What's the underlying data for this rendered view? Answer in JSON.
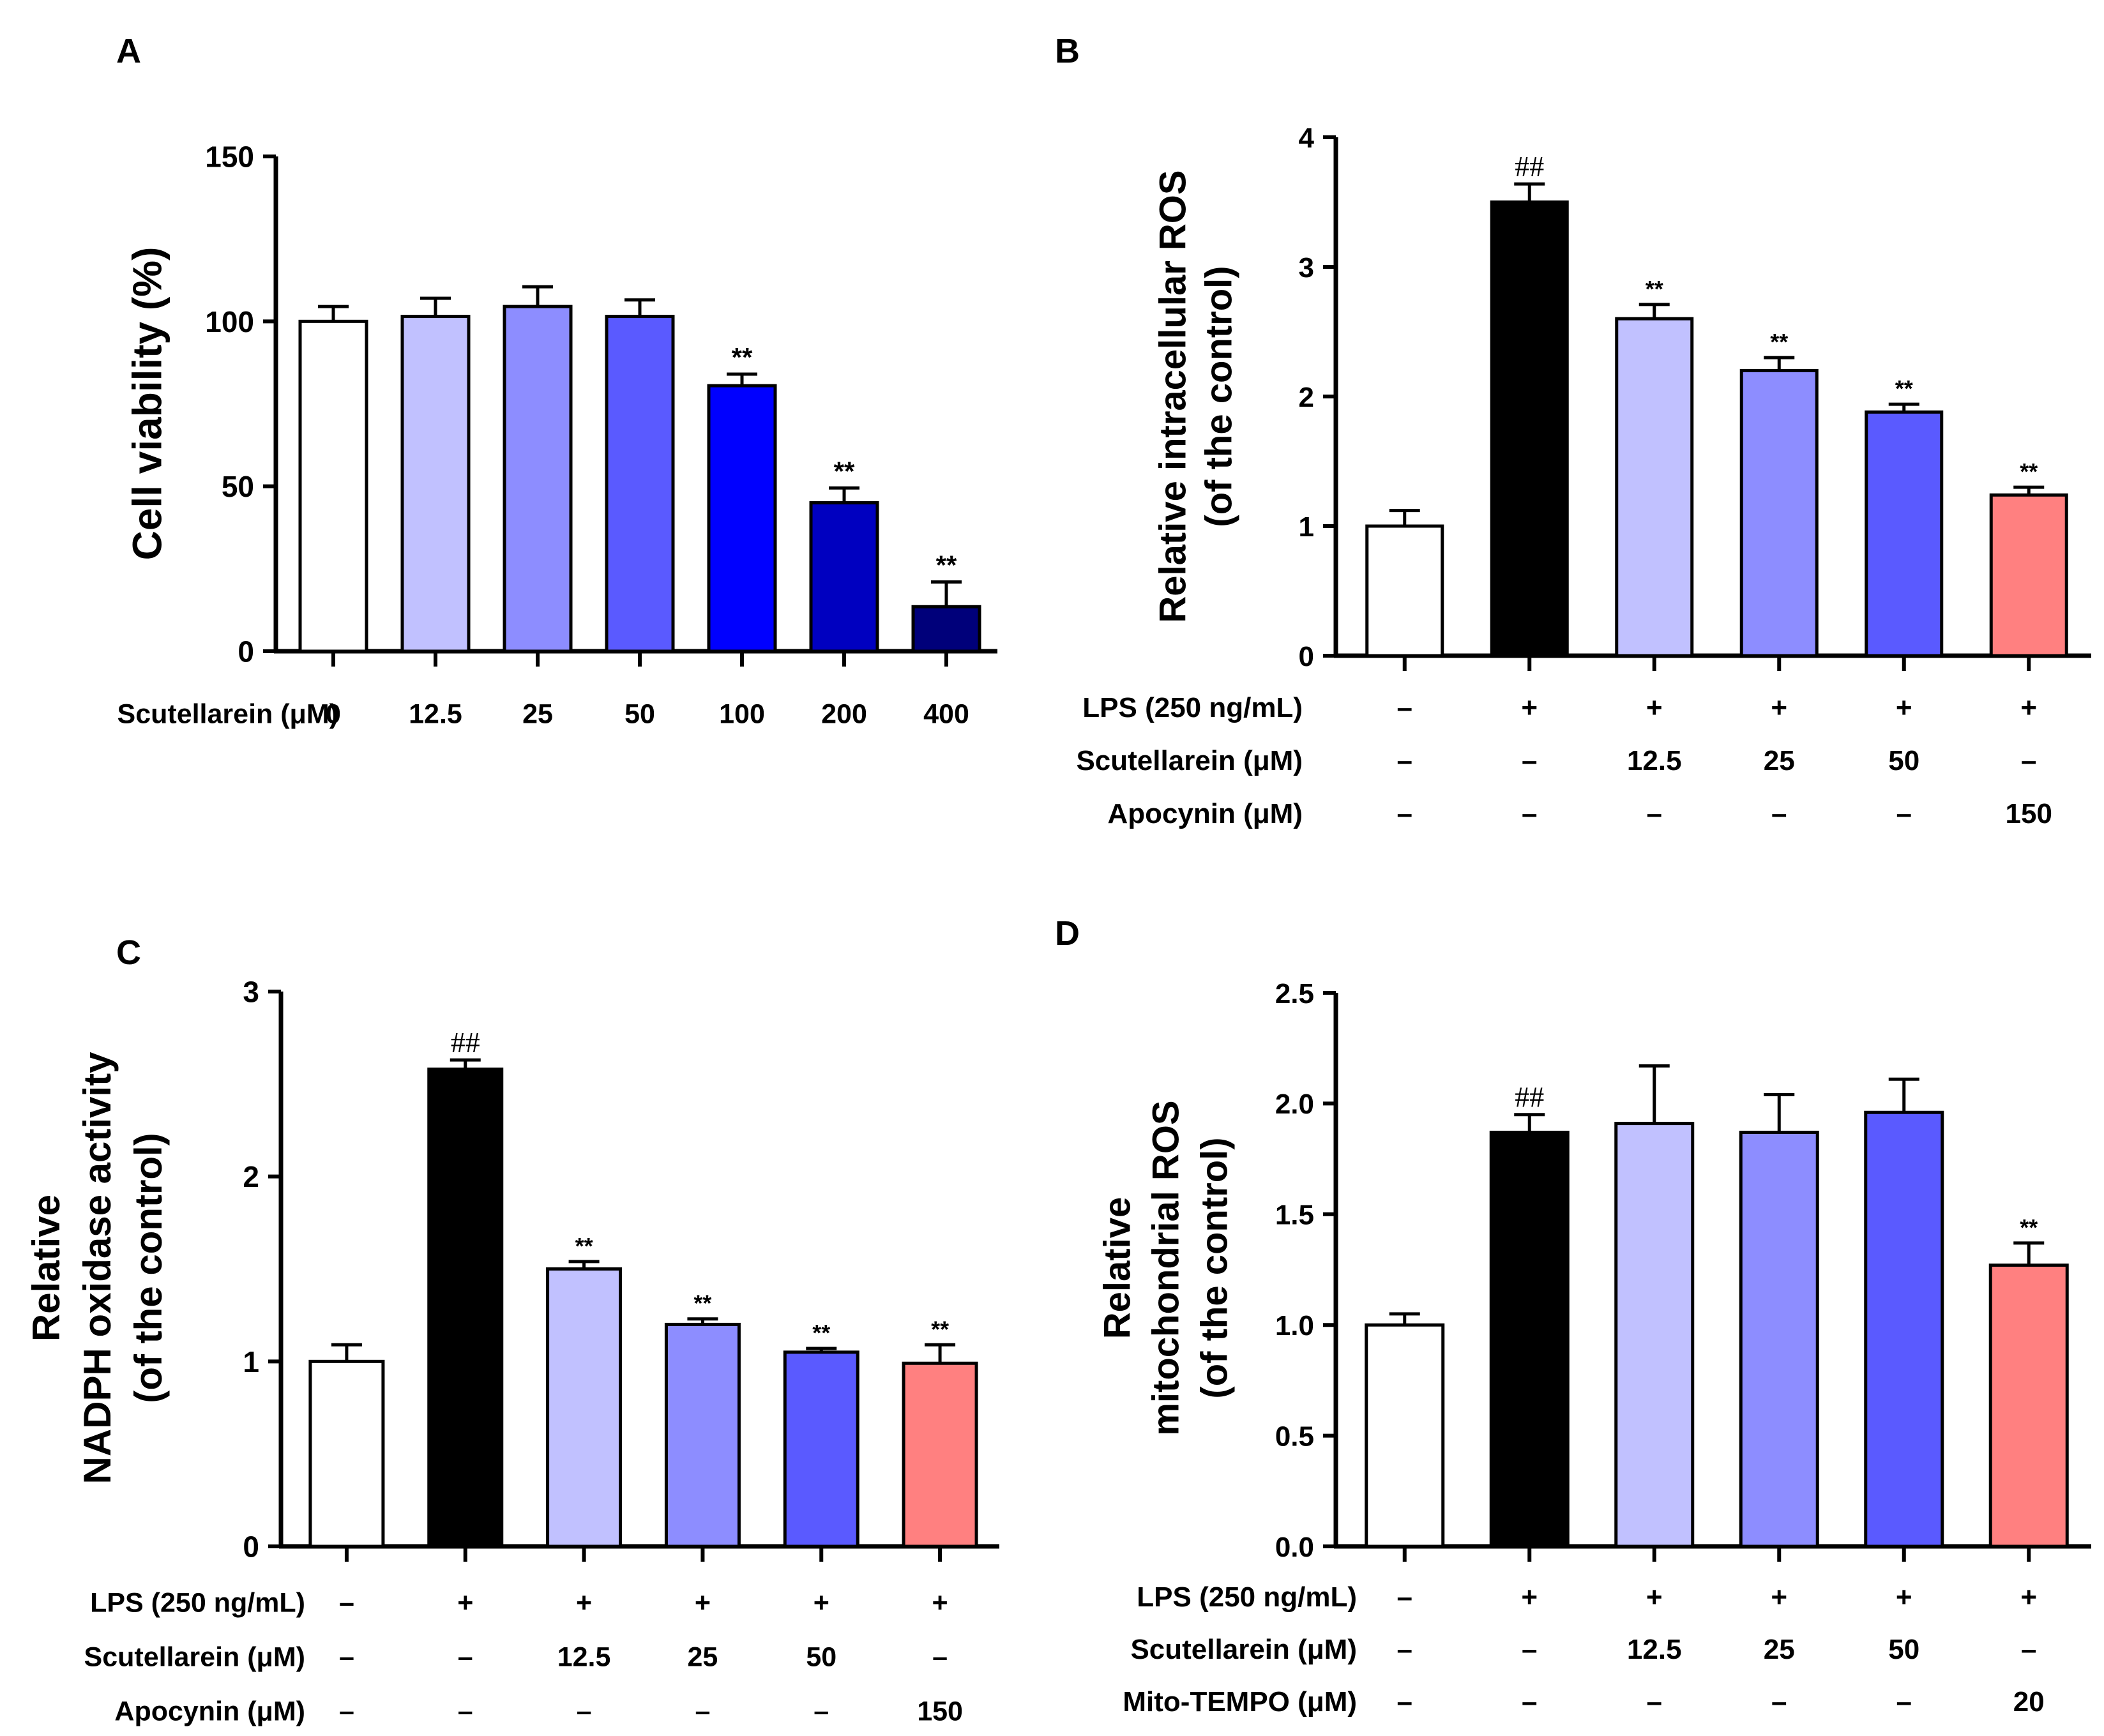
{
  "figure": {
    "panels_order": [
      "A",
      "B",
      "C",
      "D"
    ]
  },
  "chart_data": [
    {
      "panel": "A",
      "type": "bar",
      "title": "",
      "xlabel": "",
      "ylabel": "Cell viability (%)",
      "ylim": [
        0,
        150
      ],
      "yticks": [
        "0",
        "50",
        "100",
        "150"
      ],
      "categories": [
        "0",
        "12.5",
        "25",
        "50",
        "100",
        "200",
        "400"
      ],
      "values": [
        100,
        101.5,
        104.5,
        101.5,
        80.5,
        45,
        13.5
      ],
      "errors": [
        4.5,
        5.5,
        6,
        5,
        3.5,
        4.5,
        7.5
      ],
      "annotations": [
        "",
        "",
        "",
        "",
        "**",
        "**",
        "**"
      ],
      "colors": [
        "#ffffff",
        "#c1c1ff",
        "#8d8dff",
        "#5a5aff",
        "#0000ff",
        "#0000c0",
        "#00007a"
      ],
      "row_labels": [
        "Scutellarein (μM)"
      ]
    },
    {
      "panel": "B",
      "type": "bar",
      "title": "",
      "xlabel": "",
      "ylabel": [
        "Relative intracellular ROS",
        "(of the control)"
      ],
      "ylim": [
        0,
        4
      ],
      "yticks": [
        "0",
        "1",
        "2",
        "3",
        "4"
      ],
      "values": [
        1.0,
        3.5,
        2.6,
        2.2,
        1.88,
        1.24
      ],
      "errors": [
        0.12,
        0.14,
        0.11,
        0.1,
        0.06,
        0.06
      ],
      "annotations": [
        "",
        "##",
        "**",
        "**",
        "**",
        "**"
      ],
      "colors": [
        "#ffffff",
        "#000000",
        "#c1c1ff",
        "#8d8dff",
        "#5a5aff",
        "#ff8080"
      ],
      "row_labels": [
        "LPS (250 ng/mL)",
        "Scutellarein (μM)",
        "Apocynin (μM)"
      ],
      "rows": [
        [
          "–",
          "+",
          "+",
          "+",
          "+",
          "+"
        ],
        [
          "–",
          "–",
          "12.5",
          "25",
          "50",
          "–"
        ],
        [
          "–",
          "–",
          "–",
          "–",
          "–",
          "150"
        ]
      ]
    },
    {
      "panel": "C",
      "type": "bar",
      "title": "",
      "xlabel": "",
      "ylabel": [
        "Relative",
        "NADPH oxidase activity",
        "(of the control)"
      ],
      "ylim": [
        0,
        3
      ],
      "yticks": [
        "0",
        "1",
        "2",
        "3"
      ],
      "values": [
        1.0,
        2.58,
        1.5,
        1.2,
        1.05,
        0.99
      ],
      "errors": [
        0.09,
        0.05,
        0.04,
        0.03,
        0.02,
        0.1
      ],
      "annotations": [
        "",
        "##",
        "**",
        "**",
        "**",
        "**"
      ],
      "colors": [
        "#ffffff",
        "#000000",
        "#c1c1ff",
        "#8d8dff",
        "#5a5aff",
        "#ff8080"
      ],
      "row_labels": [
        "LPS (250 ng/mL)",
        "Scutellarein (μM)",
        "Apocynin (μM)"
      ],
      "rows": [
        [
          "–",
          "+",
          "+",
          "+",
          "+",
          "+"
        ],
        [
          "–",
          "–",
          "12.5",
          "25",
          "50",
          "–"
        ],
        [
          "–",
          "–",
          "–",
          "–",
          "–",
          "150"
        ]
      ]
    },
    {
      "panel": "D",
      "type": "bar",
      "title": "",
      "xlabel": "",
      "ylabel": [
        "Relative",
        "mitochondrial ROS",
        "(of the control)"
      ],
      "ylim": [
        0,
        2.5
      ],
      "yticks": [
        "0.0",
        "0.5",
        "1.0",
        "1.5",
        "2.0",
        "2.5"
      ],
      "values": [
        1.0,
        1.87,
        1.91,
        1.87,
        1.96,
        1.27
      ],
      "errors": [
        0.05,
        0.08,
        0.26,
        0.17,
        0.15,
        0.1
      ],
      "annotations": [
        "",
        "##",
        "",
        "",
        "",
        "**"
      ],
      "colors": [
        "#ffffff",
        "#000000",
        "#c1c1ff",
        "#8d8dff",
        "#5a5aff",
        "#ff8080"
      ],
      "row_labels": [
        "LPS (250 ng/mL)",
        "Scutellarein (μM)",
        "Mito-TEMPO (μM)"
      ],
      "rows": [
        [
          "–",
          "+",
          "+",
          "+",
          "+",
          "+"
        ],
        [
          "–",
          "–",
          "12.5",
          "25",
          "50",
          "–"
        ],
        [
          "–",
          "–",
          "–",
          "–",
          "–",
          "20"
        ]
      ]
    }
  ]
}
